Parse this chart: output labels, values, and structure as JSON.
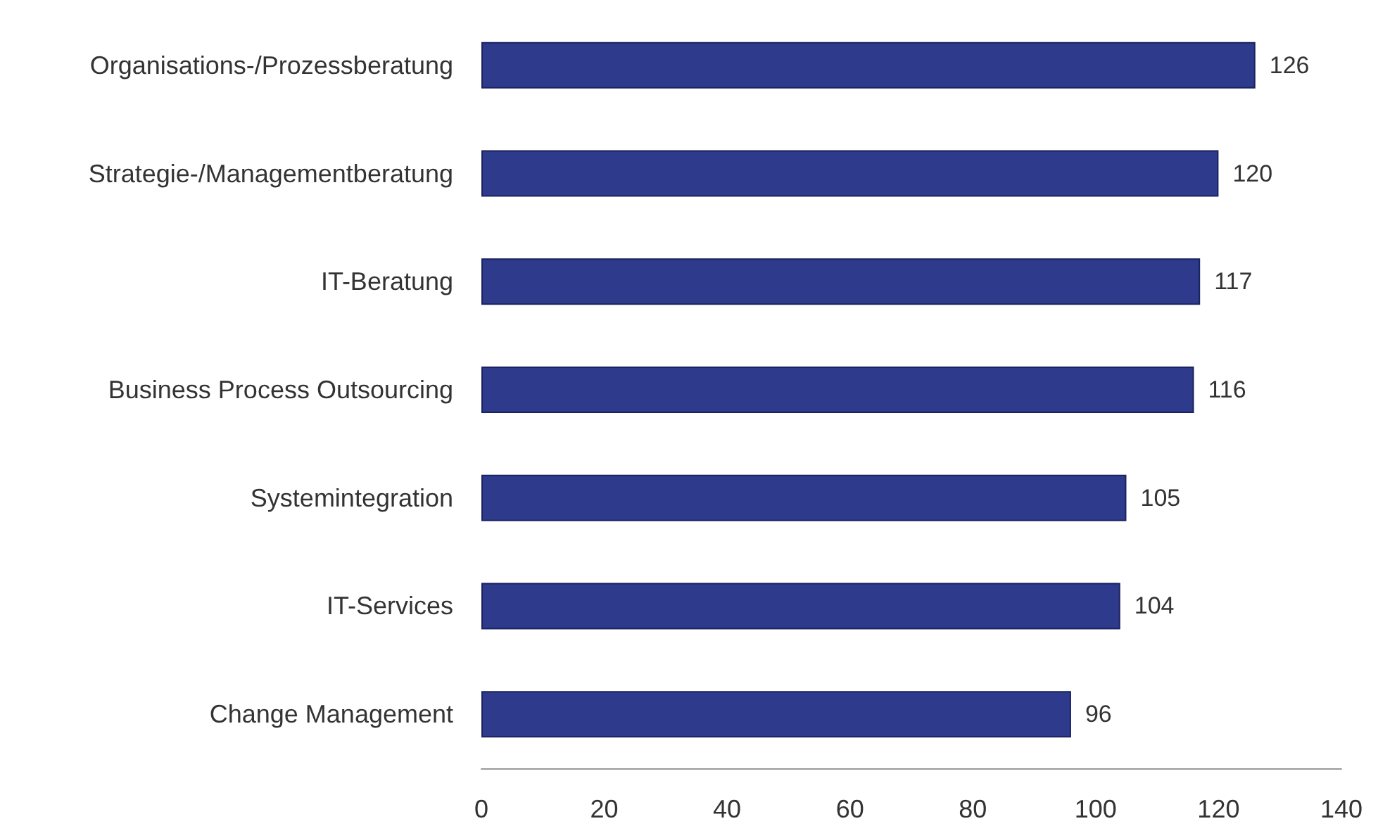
{
  "chart_data": {
    "type": "bar",
    "orientation": "horizontal",
    "categories": [
      "Organisations-/Prozessberatung",
      "Strategie-/Managementberatung",
      "IT-Beratung",
      "Business Process Outsourcing",
      "Systemintegration",
      "IT-Services",
      "Change Management"
    ],
    "values": [
      126,
      120,
      117,
      116,
      105,
      104,
      96
    ],
    "color": "#2e3a8c",
    "xlim": [
      0,
      140
    ],
    "xticks": [
      0,
      20,
      40,
      60,
      80,
      100,
      120,
      140
    ],
    "data_labels": true
  }
}
